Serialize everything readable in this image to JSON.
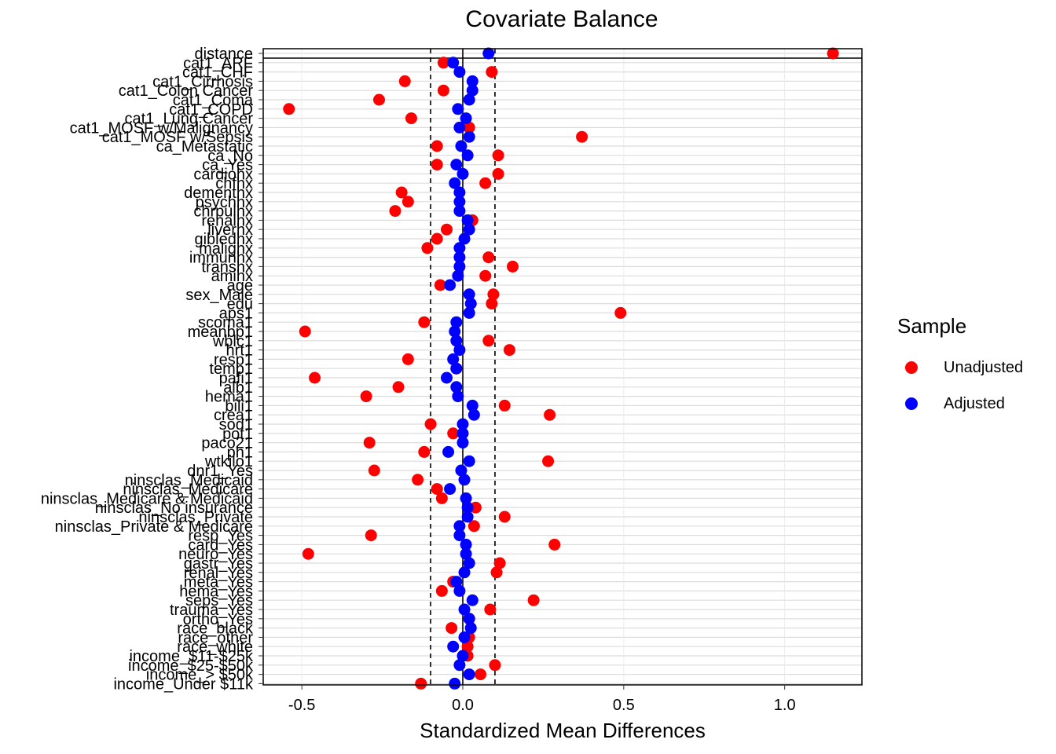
{
  "chart_data": {
    "type": "scatter",
    "title": "Covariate Balance",
    "xlabel": "Standardized Mean Differences",
    "ylabel": "",
    "xlim": [
      -0.62,
      1.24
    ],
    "x_ticks": [
      -0.5,
      0.0,
      0.5,
      1.0
    ],
    "x_tick_labels": [
      "-0.5",
      "0.0",
      "0.5",
      "1.0"
    ],
    "threshold_lines": [
      -0.1,
      0.1
    ],
    "zero_line": 0,
    "grid": true,
    "legend_position": "right",
    "legend_title": "Sample",
    "colors": {
      "Unadjusted": "#ff0000",
      "Adjusted": "#0000ff"
    },
    "categories": [
      "distance",
      "cat1_ARF",
      "cat1_CHF",
      "cat1_Cirrhosis",
      "cat1_Colon Cancer",
      "cat1_Coma",
      "cat1_COPD",
      "cat1_Lung Cancer",
      "cat1_MOSF w/Malignancy",
      "cat1_MOSF w/Sepsis",
      "ca_Metastatic",
      "ca_No",
      "ca_Yes",
      "cardiohx",
      "chfhx",
      "dementhx",
      "psychhx",
      "chrpulhx",
      "renalhx",
      "liverhx",
      "gibledhx",
      "malighx",
      "immunhx",
      "transhx",
      "amihx",
      "age",
      "sex_Male",
      "edu",
      "aps1",
      "scoma1",
      "meanbp1",
      "wblc1",
      "hrt1",
      "resp1",
      "temp1",
      "pafi1",
      "alb1",
      "hema1",
      "bili1",
      "crea1",
      "sod1",
      "pot1",
      "paco21",
      "ph1",
      "wtkilo1",
      "dnr1_Yes",
      "ninsclas_Medicaid",
      "ninsclas_Medicare",
      "ninsclas_Medicare & Medicaid",
      "ninsclas_No insurance",
      "ninsclas_Private",
      "ninsclas_Private & Medicare",
      "resp_Yes",
      "card_Yes",
      "neuro_Yes",
      "gastr_Yes",
      "renal_Yes",
      "meta_Yes",
      "hema_Yes",
      "seps_Yes",
      "trauma_Yes",
      "ortho_Yes",
      "race_black",
      "race_other",
      "race_white",
      "income_$11-$25k",
      "income_$25-$50k",
      "income_> $50k",
      "income_Under $11k"
    ],
    "series": [
      {
        "name": "Unadjusted",
        "values": [
          1.15,
          -0.06,
          0.09,
          -0.18,
          -0.06,
          -0.26,
          -0.54,
          -0.16,
          0.02,
          0.37,
          -0.08,
          0.11,
          -0.08,
          0.11,
          0.07,
          -0.19,
          -0.17,
          -0.21,
          0.03,
          -0.05,
          -0.08,
          -0.11,
          0.08,
          0.155,
          0.07,
          -0.07,
          0.095,
          0.09,
          0.49,
          -0.12,
          -0.49,
          0.08,
          0.145,
          -0.17,
          -0.02,
          -0.46,
          -0.2,
          -0.3,
          0.13,
          0.27,
          -0.1,
          -0.03,
          -0.29,
          -0.12,
          0.265,
          -0.275,
          -0.14,
          -0.08,
          -0.065,
          0.04,
          0.13,
          0.035,
          -0.285,
          0.285,
          -0.48,
          0.115,
          0.105,
          -0.03,
          -0.065,
          0.22,
          0.085,
          0.02,
          -0.035,
          0.02,
          0.015,
          0.015,
          0.1,
          0.055,
          -0.13
        ]
      },
      {
        "name": "Adjusted",
        "values": [
          0.08,
          -0.03,
          -0.01,
          0.03,
          0.03,
          0.02,
          -0.015,
          0.01,
          -0.01,
          0.02,
          -0.005,
          0.015,
          -0.02,
          0.0,
          -0.025,
          -0.01,
          -0.01,
          -0.01,
          0.015,
          0.02,
          0.005,
          -0.01,
          -0.01,
          -0.01,
          -0.015,
          -0.04,
          0.02,
          0.025,
          0.02,
          -0.02,
          -0.025,
          -0.02,
          -0.01,
          -0.03,
          -0.02,
          -0.05,
          -0.02,
          -0.015,
          0.03,
          0.035,
          0.0,
          0.0,
          0.0,
          -0.045,
          0.02,
          -0.005,
          0.005,
          -0.04,
          0.01,
          0.015,
          0.015,
          -0.01,
          -0.01,
          0.01,
          0.01,
          0.02,
          0.005,
          -0.02,
          -0.01,
          0.03,
          0.005,
          0.02,
          0.025,
          0.005,
          -0.03,
          0.0,
          -0.01,
          0.02,
          -0.025
        ]
      }
    ]
  }
}
